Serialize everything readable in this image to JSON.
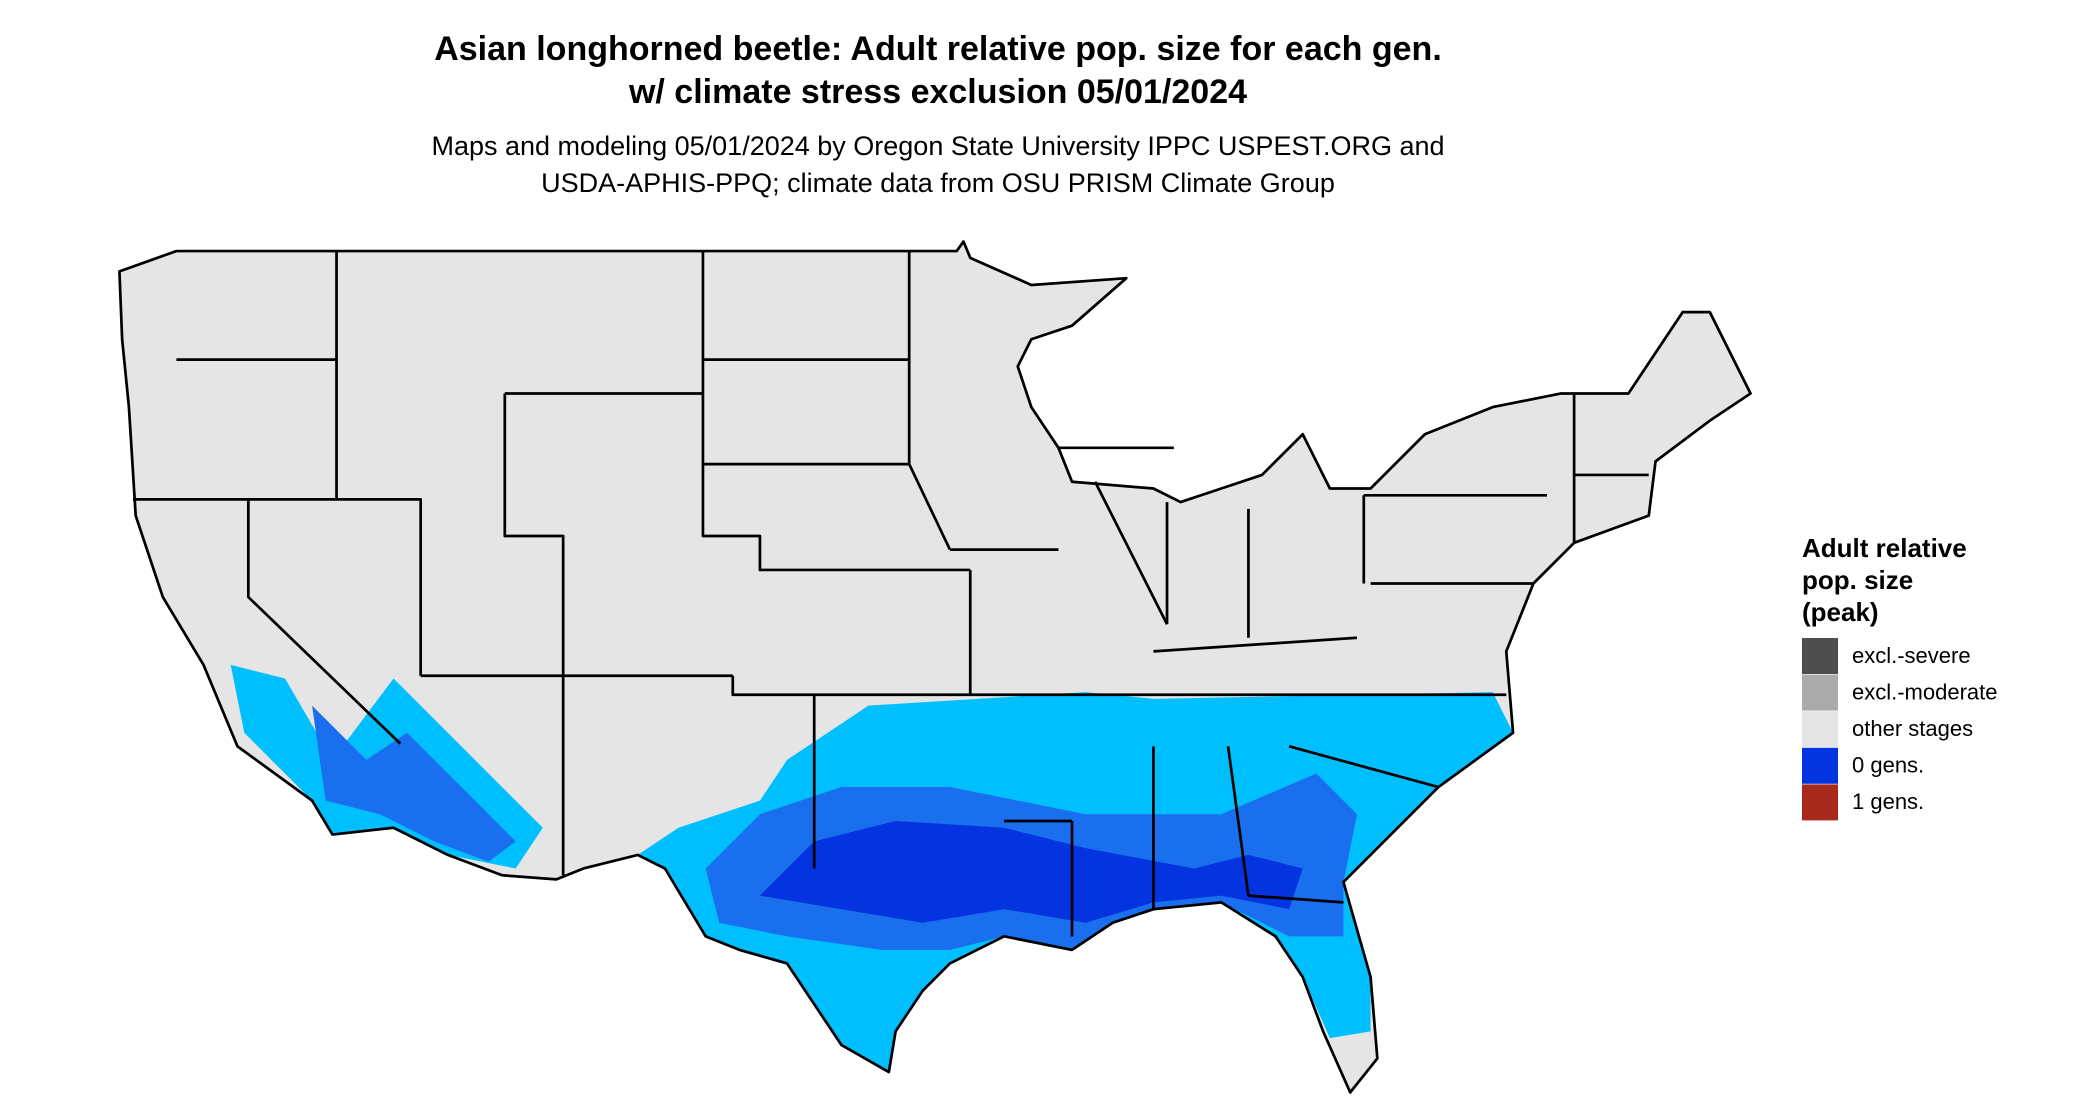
{
  "title": [
    "Asian longhorned beetle: Adult relative pop. size for each gen.",
    "w/ climate stress exclusion 05/01/2024"
  ],
  "subtitle": [
    "Maps and modeling 05/01/2024 by Oregon State University IPPC USPEST.ORG and",
    "USDA-APHIS-PPQ; climate data from OSU PRISM Climate Group"
  ],
  "legend": {
    "title": [
      "Adult relative",
      "pop. size",
      "(peak)"
    ],
    "items": [
      {
        "label": "excl.-severe",
        "color": "#4d4d4d"
      },
      {
        "label": "excl.-moderate",
        "color": "#ababab"
      },
      {
        "label": "other stages",
        "color": "#e5e5e5"
      },
      {
        "label": "0 gens.",
        "color": "#0433e0"
      },
      {
        "label": "1 gens.",
        "color": "#a82a1c"
      }
    ]
  }
}
